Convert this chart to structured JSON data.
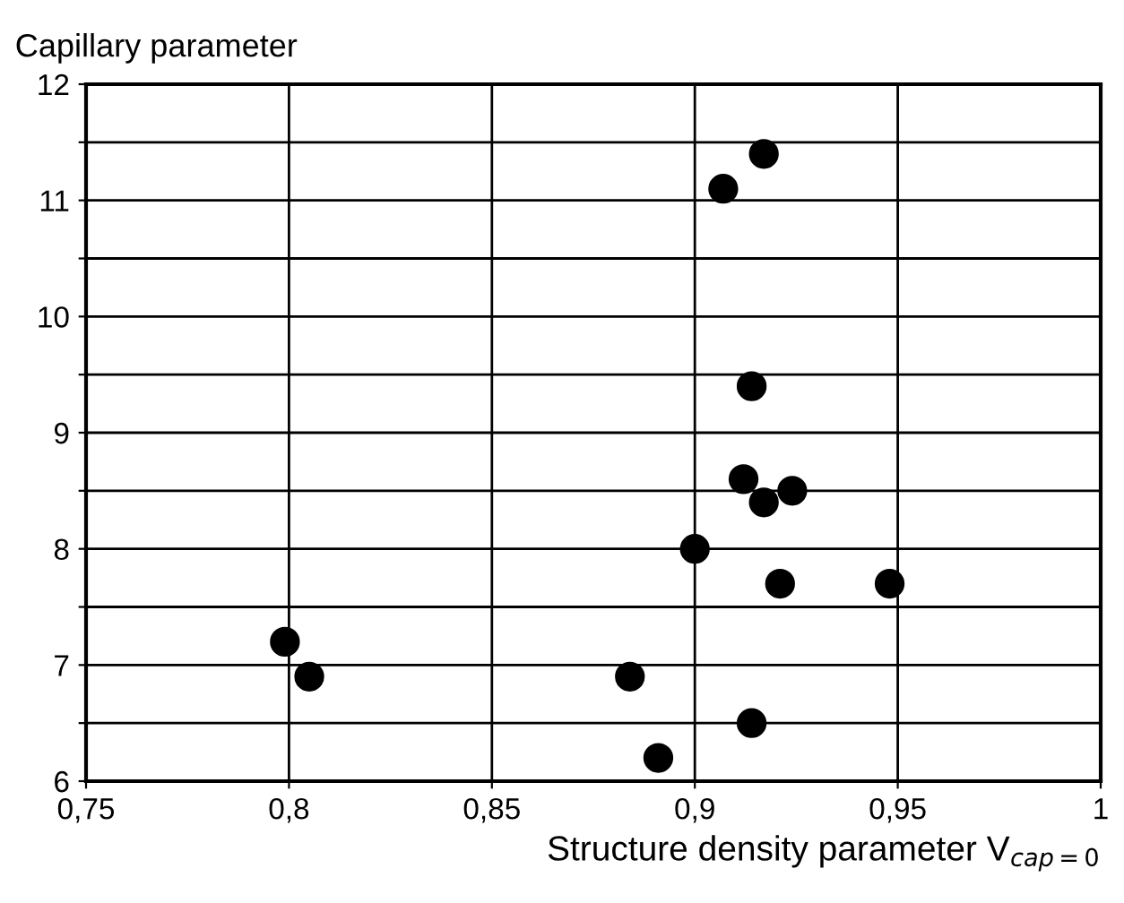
{
  "chart_data": {
    "type": "scatter",
    "ylabel": "Capillary parameter",
    "xlabel": "Structure density parameter V$_{cap=0}$",
    "x": [
      0.917,
      0.907,
      0.914,
      0.912,
      0.924,
      0.917,
      0.9,
      0.921,
      0.948,
      0.799,
      0.805,
      0.884,
      0.914,
      0.891
    ],
    "values": [
      11.4,
      11.1,
      9.4,
      8.6,
      8.5,
      8.4,
      8.0,
      7.7,
      7.7,
      7.2,
      6.9,
      6.9,
      6.5,
      6.2
    ],
    "color": "#000000",
    "marker": "circle",
    "grid": true,
    "xlim": [
      0.75,
      1
    ],
    "xticks": [
      {
        "value": 0.75,
        "label": "0,75"
      },
      {
        "value": 0.8,
        "label": "0,8"
      },
      {
        "value": 0.85,
        "label": "0,85"
      },
      {
        "value": 0.9,
        "label": "0,9"
      },
      {
        "value": 0.95,
        "label": "0,95"
      },
      {
        "value": 1,
        "label": "1"
      }
    ],
    "ylim": [
      6,
      12
    ],
    "yticks": [
      6,
      {
        "value": 6.5,
        "label": null
      },
      7,
      {
        "value": 7.5,
        "label": null
      },
      8,
      {
        "value": 8.5,
        "label": null
      },
      9,
      {
        "value": 9.5,
        "label": null
      },
      10,
      {
        "value": 10.5,
        "label": null
      },
      11,
      {
        "value": 11.5,
        "label": null
      },
      12
    ]
  }
}
